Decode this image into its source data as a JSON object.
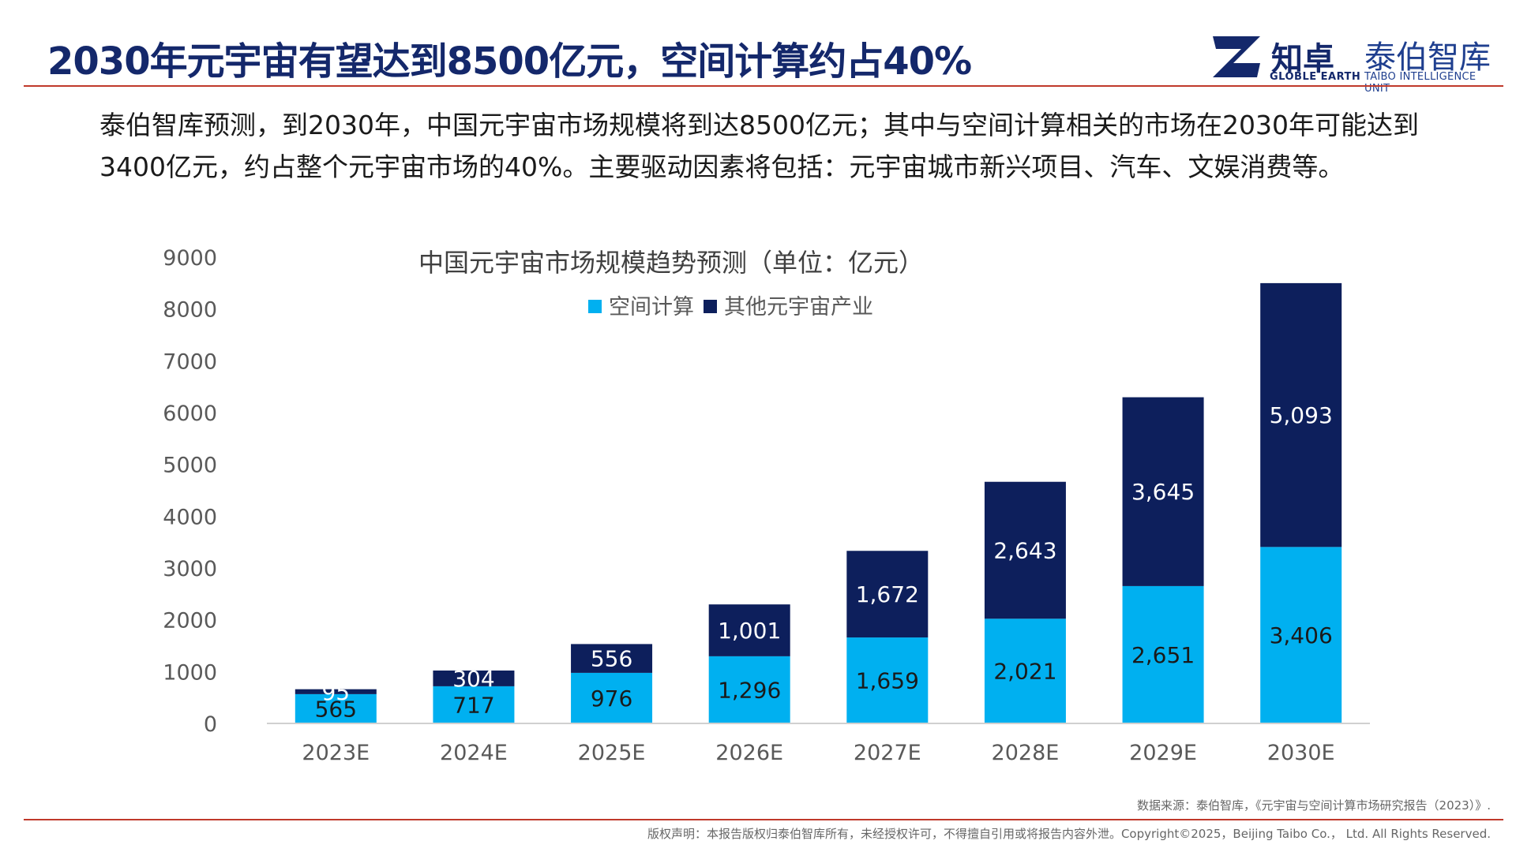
{
  "header": {
    "title": "2030年元宇宙有望达到8500亿元，空间计算约占40%",
    "logo_primary": "知卓",
    "logo_primary_sub": "GLOBLE EARTH",
    "logo_secondary": "泰伯智库",
    "logo_secondary_sub": "TAIBO INTELLIGENCE UNIT"
  },
  "intro": "泰伯智库预测，到2030年，中国元宇宙市场规模将到达8500亿元；其中与空间计算相关的市场在2030年可能达到3400亿元，约占整个元宇宙市场的40%。主要驱动因素将包括：元宇宙城市新兴项目、汽车、文娱消费等。",
  "colors": {
    "title": "#14286b",
    "accent_rule": "#c0392b",
    "spatial": "#00b0f0",
    "other": "#0d1f5c"
  },
  "chart_data": {
    "type": "bar",
    "stacked": true,
    "title": "中国元宇宙市场规模趋势预测（单位：亿元）",
    "categories": [
      "2023E",
      "2024E",
      "2025E",
      "2026E",
      "2027E",
      "2028E",
      "2029E",
      "2030E"
    ],
    "series": [
      {
        "name": "空间计算",
        "color": "#00b0f0",
        "values": [
          565,
          717,
          976,
          1296,
          1659,
          2021,
          2651,
          3406
        ],
        "labels": [
          "565",
          "717",
          "976",
          "1,296",
          "1,659",
          "2,021",
          "2,651",
          "3,406"
        ]
      },
      {
        "name": "其他元宇宙产业",
        "color": "#0d1f5c",
        "values": [
          95,
          304,
          556,
          1001,
          1672,
          2643,
          3645,
          5093
        ],
        "labels": [
          "95",
          "304",
          "556",
          "1,001",
          "1,672",
          "2,643",
          "3,645",
          "5,093"
        ]
      }
    ],
    "yticks": [
      "0",
      "1000",
      "2000",
      "3000",
      "4000",
      "5000",
      "6000",
      "7000",
      "8000",
      "9000"
    ],
    "ylim": [
      0,
      9000
    ],
    "legend_position": "top-center",
    "grid": false
  },
  "footer": {
    "source": "数据来源：泰伯智库，《元宇宙与空间计算市场研究报告（2023）》.",
    "copyright": "版权声明：本报告版权归泰伯智库所有，未经授权许可，不得擅自引用或将报告内容外泄。Copyright©2025，Beijing Taibo Co.， Ltd. All Rights Reserved."
  }
}
